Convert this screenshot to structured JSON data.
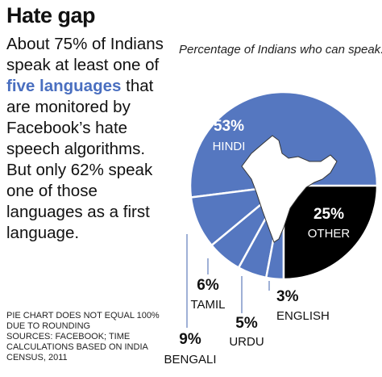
{
  "title": "Hate gap",
  "intro": {
    "before": "About 75% of Indians speak at least one of",
    "highlight": "five languages",
    "after": "that are monitored by Facebook’s hate speech algorithms. But only 62% speak one of those languages as a first language."
  },
  "notes": [
    "PIE CHART DOES NOT EQUAL 100% DUE TO ROUNDING",
    "SOURCES: FACEBOOK; TIME CALCULATIONS BASED ON INDIA CENSUS, 2011"
  ],
  "chart_data": {
    "type": "pie",
    "title": "Percentage of Indians who can speak:",
    "categories": [
      "OTHER",
      "ENGLISH",
      "URDU",
      "TAMIL",
      "BENGALI",
      "HINDI"
    ],
    "values": [
      25,
      3,
      5,
      6,
      9,
      53
    ],
    "value_labels": [
      "25%",
      "3%",
      "5%",
      "6%",
      "9%",
      "53%"
    ],
    "colors": [
      "#000000",
      "#5577c0",
      "#5577c0",
      "#5577c0",
      "#5577c0",
      "#5577c0"
    ]
  }
}
